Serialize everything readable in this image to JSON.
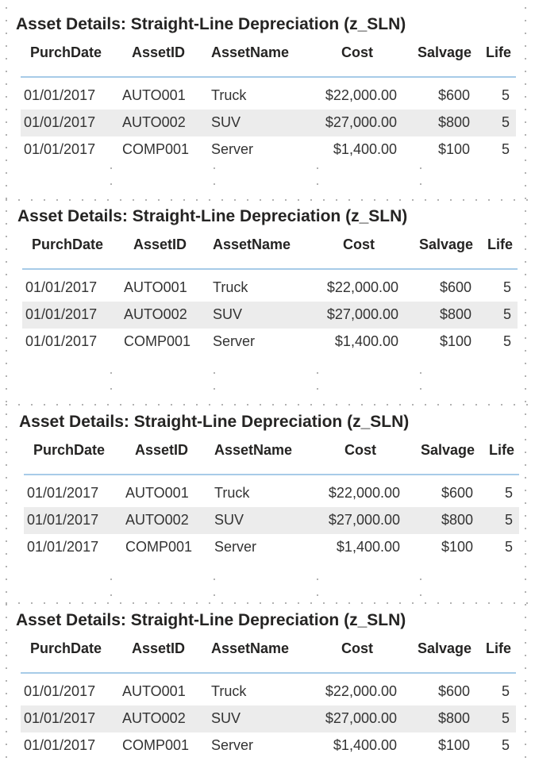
{
  "visuals": [
    {
      "title": "Asset Details: Straight-Line Depreciation (z_SLN)",
      "columns": [
        "PurchDate",
        "AssetID",
        "AssetName",
        "Cost",
        "Salvage",
        "Life"
      ],
      "rows": [
        [
          "01/01/2017",
          "AUTO001",
          "Truck",
          "$22,000.00",
          "$600",
          "5"
        ],
        [
          "01/01/2017",
          "AUTO002",
          "SUV",
          "$27,000.00",
          "$800",
          "5"
        ],
        [
          "01/01/2017",
          "COMP001",
          "Server",
          "$1,400.00",
          "$100",
          "5"
        ]
      ]
    },
    {
      "title": "Asset Details: Straight-Line Depreciation (z_SLN)",
      "columns": [
        "PurchDate",
        "AssetID",
        "AssetName",
        "Cost",
        "Salvage",
        "Life"
      ],
      "rows": [
        [
          "01/01/2017",
          "AUTO001",
          "Truck",
          "$22,000.00",
          "$600",
          "5"
        ],
        [
          "01/01/2017",
          "AUTO002",
          "SUV",
          "$27,000.00",
          "$800",
          "5"
        ],
        [
          "01/01/2017",
          "COMP001",
          "Server",
          "$1,400.00",
          "$100",
          "5"
        ]
      ]
    },
    {
      "title": "Asset Details: Straight-Line Depreciation (z_SLN)",
      "columns": [
        "PurchDate",
        "AssetID",
        "AssetName",
        "Cost",
        "Salvage",
        "Life"
      ],
      "rows": [
        [
          "01/01/2017",
          "AUTO001",
          "Truck",
          "$22,000.00",
          "$600",
          "5"
        ],
        [
          "01/01/2017",
          "AUTO002",
          "SUV",
          "$27,000.00",
          "$800",
          "5"
        ],
        [
          "01/01/2017",
          "COMP001",
          "Server",
          "$1,400.00",
          "$100",
          "5"
        ]
      ]
    },
    {
      "title": "Asset Details: Straight-Line Depreciation (z_SLN)",
      "columns": [
        "PurchDate",
        "AssetID",
        "AssetName",
        "Cost",
        "Salvage",
        "Life"
      ],
      "rows": [
        [
          "01/01/2017",
          "AUTO001",
          "Truck",
          "$22,000.00",
          "$600",
          "5"
        ],
        [
          "01/01/2017",
          "AUTO002",
          "SUV",
          "$27,000.00",
          "$800",
          "5"
        ],
        [
          "01/01/2017",
          "COMP001",
          "Server",
          "$1,400.00",
          "$100",
          "5"
        ]
      ]
    }
  ],
  "colors": {
    "header_underline": "#a7cbe8",
    "alt_row_background": "#ececec",
    "title_text": "#252423",
    "body_text": "#333333",
    "grid_dot": "#9a9a9a"
  }
}
